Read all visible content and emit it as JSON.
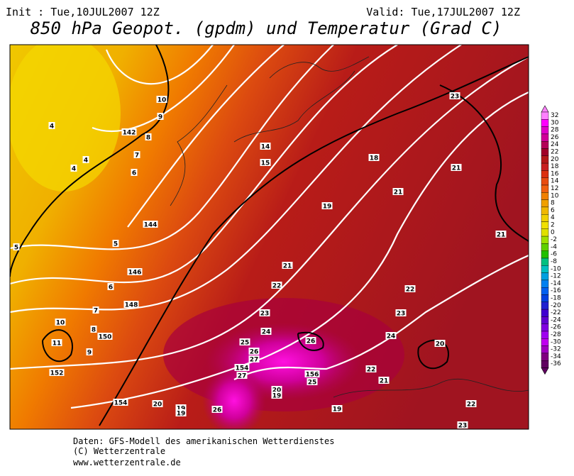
{
  "header": {
    "init": "Init : Tue,10JUL2007 12Z",
    "valid": "Valid: Tue,17JUL2007 12Z",
    "title": "850 hPa Geopot. (gpdm) und Temperatur (Grad C)"
  },
  "footer": {
    "line1": "Daten: GFS-Modell des amerikanischen Wetterdienstes",
    "line2": "(C) Wetterzentrale",
    "line3": "www.wetterzentrale.de"
  },
  "scale": {
    "values": [
      32,
      30,
      28,
      26,
      24,
      22,
      20,
      18,
      16,
      14,
      12,
      10,
      8,
      6,
      4,
      2,
      0,
      -2,
      -4,
      -6,
      -8,
      -10,
      -12,
      -14,
      -16,
      -18,
      -20,
      -22,
      -24,
      -26,
      -28,
      -30,
      -32,
      -34,
      -36
    ],
    "colors": [
      "#ff80ff",
      "#ff00ff",
      "#e000c8",
      "#d00098",
      "#b40058",
      "#a00028",
      "#b41818",
      "#c82020",
      "#dc3010",
      "#e84c10",
      "#f06010",
      "#f08000",
      "#f0a000",
      "#f0b800",
      "#f0d000",
      "#f0e000",
      "#e0e000",
      "#a0e000",
      "#60d000",
      "#20c000",
      "#00c080",
      "#00c0c0",
      "#00a0e0",
      "#0080f0",
      "#0060f0",
      "#0040e0",
      "#2020d0",
      "#4000d0",
      "#6000d0",
      "#8000e0",
      "#a000f0",
      "#c000f0",
      "#a000c0",
      "#800080",
      "#600060"
    ]
  },
  "map_labels": [
    "10",
    "9",
    "142",
    "8",
    "7",
    "6",
    "4",
    "4",
    "4",
    "144",
    "5",
    "5",
    "146",
    "6",
    "148",
    "7",
    "10",
    "8",
    "150",
    "11",
    "9",
    "152",
    "154",
    "20",
    "19",
    "19",
    "26",
    "154",
    "27",
    "27",
    "26",
    "25",
    "24",
    "23",
    "22",
    "21",
    "14",
    "15",
    "19",
    "18",
    "21",
    "21",
    "23",
    "21",
    "22",
    "23",
    "24",
    "26",
    "156",
    "25",
    "20",
    "19",
    "19",
    "22",
    "21",
    "20",
    "22",
    "23"
  ]
}
